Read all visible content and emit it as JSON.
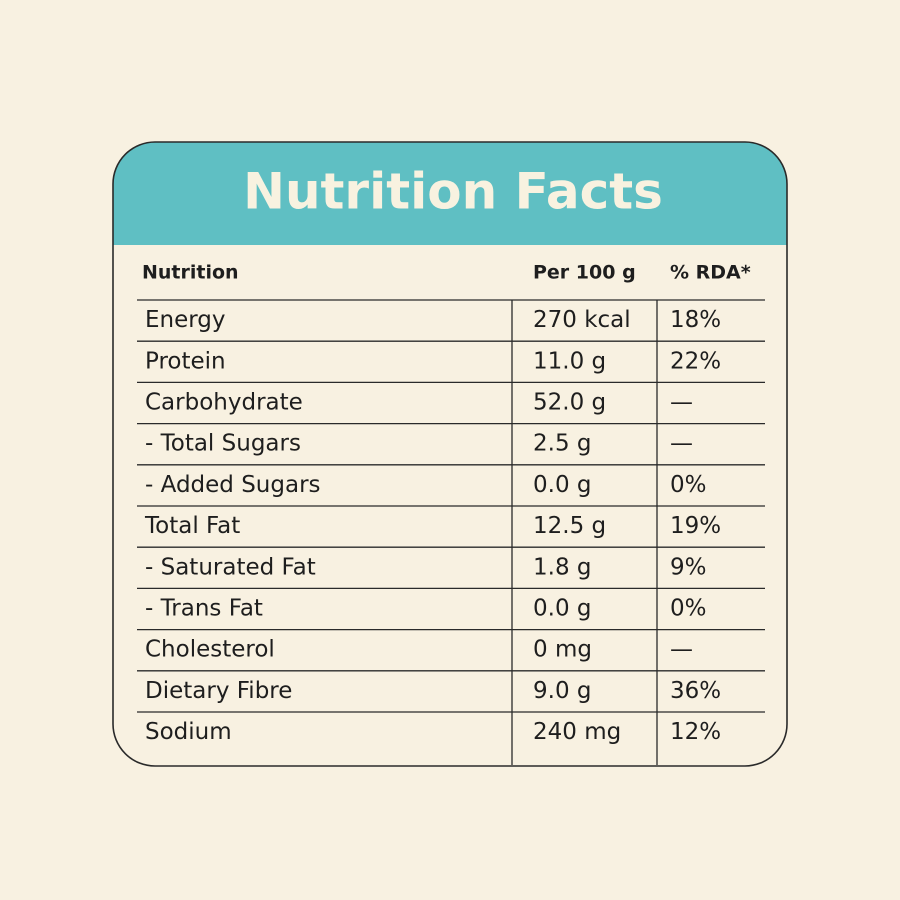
{
  "title": "Nutrition Facts",
  "table": {
    "headers": [
      "Nutrition",
      "Per 100 g",
      "% RDA*"
    ],
    "rows": [
      [
        "Energy",
        "270 kcal",
        "18%"
      ],
      [
        "Protein",
        "11.0 g",
        "22%"
      ],
      [
        "Carbohydrate",
        "52.0 g",
        "—"
      ],
      [
        "- Total Sugars",
        "2.5 g",
        "—"
      ],
      [
        "- Added Sugars",
        "0.0 g",
        "0%"
      ],
      [
        "Total Fat",
        "12.5 g",
        "19%"
      ],
      [
        "- Saturated Fat",
        "1.8 g",
        "9%"
      ],
      [
        "- Trans Fat",
        "0.0 g",
        "0%"
      ],
      [
        "Cholesterol",
        "0 mg",
        "—"
      ],
      [
        "Dietary Fibre",
        "9.0 g",
        "36%"
      ],
      [
        "Sodium",
        "240 mg",
        "12%"
      ]
    ]
  }
}
